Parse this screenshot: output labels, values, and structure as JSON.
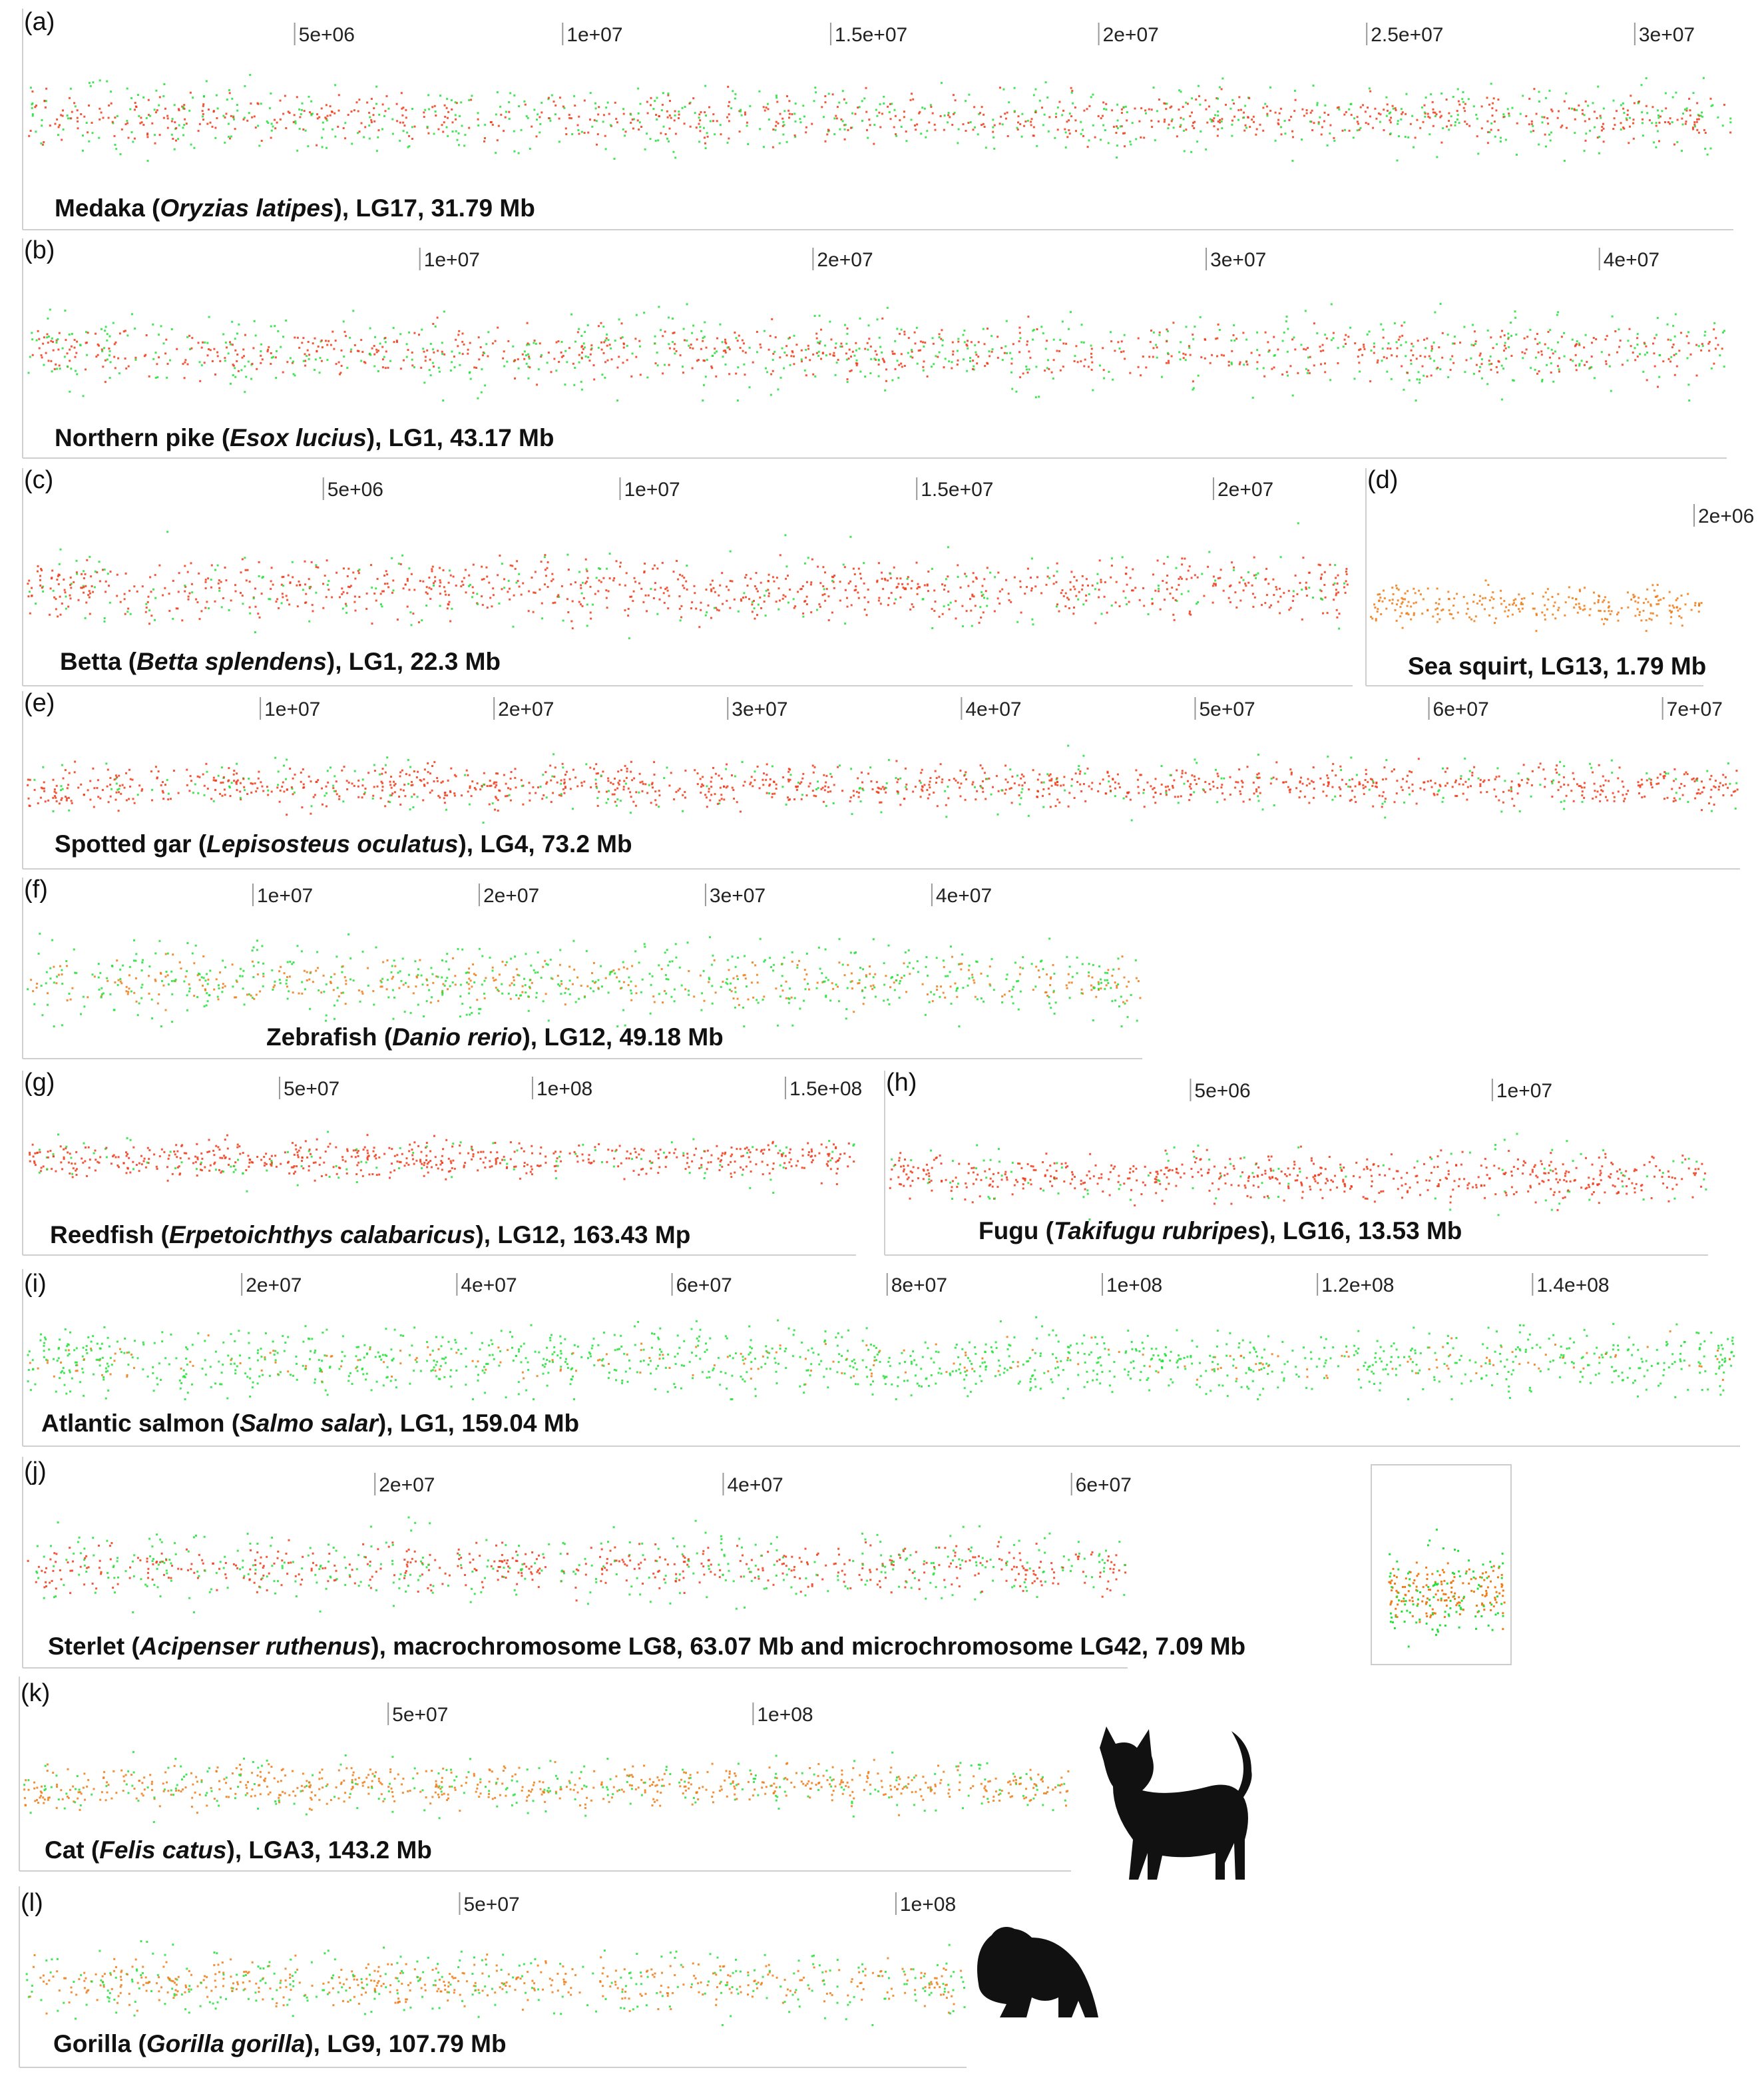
{
  "colors": {
    "red": "#f03a17",
    "orange": "#f07a14",
    "green": "#22e03a",
    "silhouette": "#111111"
  },
  "chart_data": [
    {
      "panel": "(a)",
      "type": "scatter",
      "caption": [
        "Medaka (",
        "Oryzias latipes",
        "), LG17, 31.79 Mb"
      ],
      "xlim": [
        0,
        31790000
      ],
      "ticks": [
        "5e+06",
        "1e+07",
        "1.5e+07",
        "2e+07",
        "2.5e+07",
        "3e+07"
      ],
      "tick_values": [
        5000000,
        10000000,
        15000000,
        20000000,
        25000000,
        30000000
      ],
      "series": [
        {
          "name": "red",
          "share": 0.55
        },
        {
          "name": "green",
          "share": 0.45
        }
      ]
    },
    {
      "panel": "(b)",
      "type": "scatter",
      "caption": [
        "Northern pike (",
        "Esox lucius",
        "), LG1, 43.17 Mb"
      ],
      "xlim": [
        0,
        43170000
      ],
      "ticks": [
        "1e+07",
        "2e+07",
        "3e+07",
        "4e+07"
      ],
      "tick_values": [
        10000000,
        20000000,
        30000000,
        40000000
      ],
      "series": [
        {
          "name": "red",
          "share": 0.55
        },
        {
          "name": "green",
          "share": 0.45
        }
      ]
    },
    {
      "panel": "(c)",
      "type": "scatter",
      "caption": [
        "Betta (",
        "Betta splendens",
        "), LG1, 22.3 Mb"
      ],
      "xlim": [
        0,
        22300000
      ],
      "ticks": [
        "5e+06",
        "1e+07",
        "1.5e+07",
        "2e+07"
      ],
      "tick_values": [
        5000000,
        10000000,
        15000000,
        20000000
      ],
      "series": [
        {
          "name": "red",
          "share": 0.8
        },
        {
          "name": "green",
          "share": 0.2
        }
      ]
    },
    {
      "panel": "(d)",
      "type": "scatter",
      "caption": [
        "Sea squirt, LG13, 1.79 Mb"
      ],
      "xlim": [
        0,
        1790000
      ],
      "ticks": [
        "2e+06"
      ],
      "tick_values": [
        2000000
      ],
      "series": [
        {
          "name": "orange",
          "share": 1.0
        }
      ]
    },
    {
      "panel": "(e)",
      "type": "scatter",
      "caption": [
        "Spotted gar (",
        "Lepisosteus oculatus",
        "), LG4, 73.2 Mb"
      ],
      "xlim": [
        0,
        73200000
      ],
      "ticks": [
        "1e+07",
        "2e+07",
        "3e+07",
        "4e+07",
        "5e+07",
        "6e+07",
        "7e+07"
      ],
      "tick_values": [
        10000000,
        20000000,
        30000000,
        40000000,
        50000000,
        60000000,
        70000000
      ],
      "series": [
        {
          "name": "red",
          "share": 0.8
        },
        {
          "name": "green",
          "share": 0.2
        }
      ]
    },
    {
      "panel": "(f)",
      "type": "scatter",
      "caption": [
        "Zebrafish (",
        "Danio rerio",
        "), LG12, 49.18 Mb"
      ],
      "xlim": [
        0,
        49180000
      ],
      "ticks": [
        "1e+07",
        "2e+07",
        "3e+07",
        "4e+07"
      ],
      "tick_values": [
        10000000,
        20000000,
        30000000,
        40000000
      ],
      "series": [
        {
          "name": "green",
          "share": 0.6
        },
        {
          "name": "orange",
          "share": 0.4
        }
      ]
    },
    {
      "panel": "(g)",
      "type": "scatter",
      "caption": [
        "Reedfish (",
        "Erpetoichthys calabaricus",
        "), LG12, 163.43 Mp"
      ],
      "xlim": [
        0,
        163430000
      ],
      "ticks": [
        "5e+07",
        "1e+08",
        "1.5e+08"
      ],
      "tick_values": [
        50000000,
        100000000,
        150000000
      ],
      "series": [
        {
          "name": "red",
          "share": 0.85
        },
        {
          "name": "green",
          "share": 0.15
        }
      ]
    },
    {
      "panel": "(h)",
      "type": "scatter",
      "caption": [
        "Fugu (",
        "Takifugu rubripes",
        "), LG16, 13.53 Mb"
      ],
      "xlim": [
        0,
        13530000
      ],
      "ticks": [
        "5e+06",
        "1e+07"
      ],
      "tick_values": [
        5000000,
        10000000
      ],
      "series": [
        {
          "name": "red",
          "share": 0.85
        },
        {
          "name": "green",
          "share": 0.15
        }
      ]
    },
    {
      "panel": "(i)",
      "type": "scatter",
      "caption": [
        "Atlantic salmon (",
        "Salmo salar",
        "), LG1, 159.04 Mb"
      ],
      "xlim": [
        0,
        159040000
      ],
      "ticks": [
        "2e+07",
        "4e+07",
        "6e+07",
        "8e+07",
        "1e+08",
        "1.2e+08",
        "1.4e+08"
      ],
      "tick_values": [
        20000000,
        40000000,
        60000000,
        80000000,
        100000000,
        120000000,
        140000000
      ],
      "series": [
        {
          "name": "green",
          "share": 0.85
        },
        {
          "name": "orange",
          "share": 0.15
        }
      ]
    },
    {
      "panel": "(j)",
      "type": "scatter",
      "caption": [
        "Sterlet (",
        "Acipenser ruthenus",
        "), macrochromosome LG8, 63.07 Mb and microchromosome LG42, 7.09 Mb"
      ],
      "xlim": [
        0,
        63070000
      ],
      "ticks": [
        "2e+07",
        "4e+07",
        "6e+07"
      ],
      "tick_values": [
        20000000,
        40000000,
        60000000
      ],
      "series": [
        {
          "name": "red",
          "share": 0.55
        },
        {
          "name": "green",
          "share": 0.45
        }
      ]
    },
    {
      "panel": "(k)",
      "type": "scatter",
      "caption": [
        "Cat (",
        "Felis catus",
        "), LGA3, 143.2 Mb"
      ],
      "xlim": [
        0,
        143200000
      ],
      "ticks": [
        "5e+07",
        "1e+08"
      ],
      "tick_values": [
        50000000,
        100000000
      ],
      "series": [
        {
          "name": "orange",
          "share": 0.7
        },
        {
          "name": "green",
          "share": 0.3
        }
      ]
    },
    {
      "panel": "(l)",
      "type": "scatter",
      "caption": [
        "Gorilla (",
        "Gorilla gorilla",
        "), LG9, 107.79 Mb"
      ],
      "xlim": [
        0,
        107790000
      ],
      "ticks": [
        "5e+07",
        "1e+08"
      ],
      "tick_values": [
        50000000,
        100000000
      ],
      "series": [
        {
          "name": "orange",
          "share": 0.6
        },
        {
          "name": "green",
          "share": 0.4
        }
      ]
    }
  ]
}
